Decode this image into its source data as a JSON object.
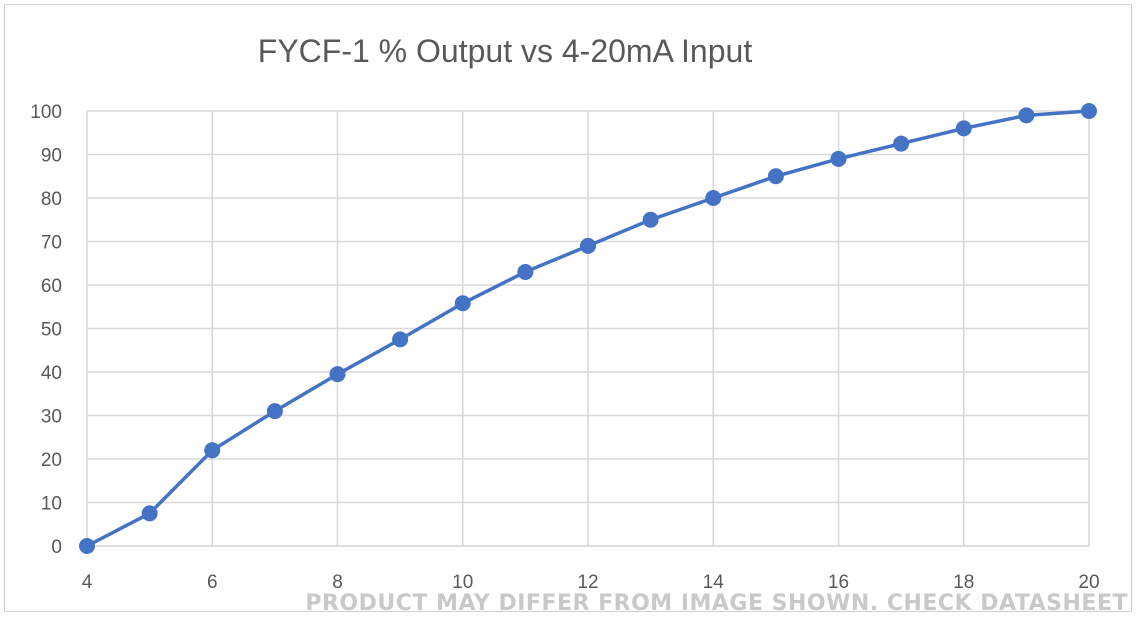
{
  "chart_data": {
    "type": "line",
    "title": "FYCF-1 % Output vs 4-20mA Input",
    "xlabel": "",
    "ylabel": "",
    "xlim": [
      4,
      20
    ],
    "ylim": [
      0,
      100
    ],
    "x_ticks": [
      4,
      6,
      8,
      10,
      12,
      14,
      16,
      18,
      20
    ],
    "y_ticks": [
      0,
      10,
      20,
      30,
      40,
      50,
      60,
      70,
      80,
      90,
      100
    ],
    "x_tick_labels": [
      "4",
      "6",
      "8",
      "10",
      "12",
      "14",
      "16",
      "18",
      "20"
    ],
    "y_tick_labels": [
      "0",
      "10",
      "20",
      "30",
      "40",
      "50",
      "60",
      "70",
      "80",
      "90",
      "100"
    ],
    "grid": true,
    "legend": "none",
    "series": [
      {
        "color": "#4472c4",
        "markers": true,
        "x": [
          4,
          5,
          6,
          7,
          8,
          9,
          10,
          11,
          12,
          13,
          14,
          15,
          16,
          17,
          18,
          19,
          20
        ],
        "y": [
          0,
          7.5,
          22,
          31,
          39.5,
          47.5,
          55.8,
          63,
          69,
          75,
          80,
          85,
          89,
          92.5,
          96,
          99,
          100
        ]
      }
    ]
  },
  "watermark": {
    "text": "PRODUCT MAY DIFFER FROM IMAGE SHOWN. CHECK DATASHEET"
  }
}
